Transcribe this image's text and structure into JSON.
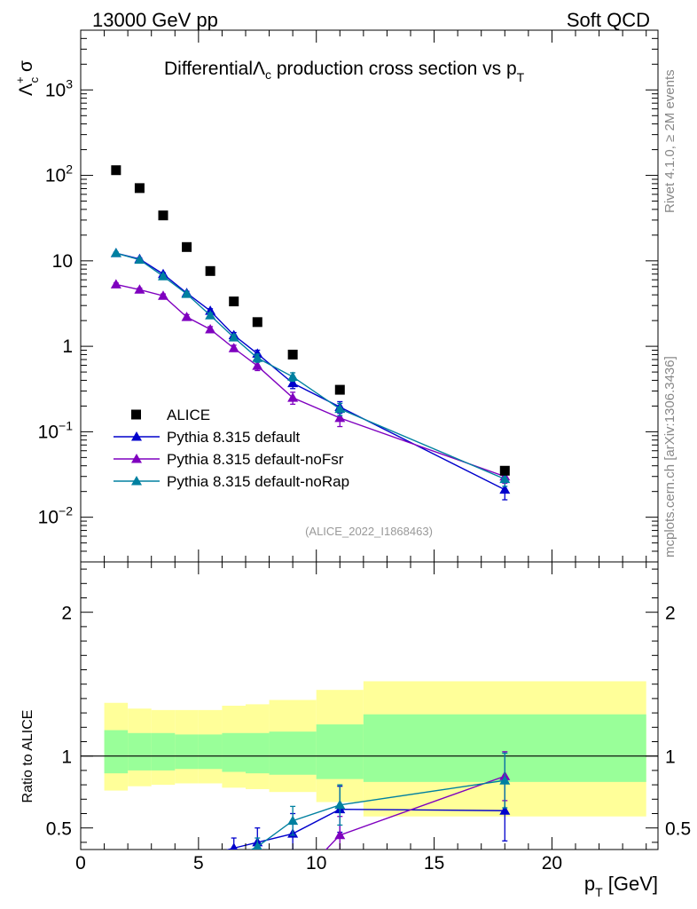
{
  "header": {
    "left": "13000 GeV pp",
    "right": "Soft QCD"
  },
  "side_text": {
    "top": "Rivet 4.1.0, ≥ 2M events",
    "bottom": "mcplots.cern.ch [arXiv:1306.3436]"
  },
  "colors": {
    "data": "#000000",
    "default": "#0000cc",
    "noFsr": "#7f00bf",
    "noRap": "#0080a0",
    "band_inner": "#99ff99",
    "band_outer": "#ffff99"
  },
  "chart_data": [
    {
      "type": "scatter",
      "panel": "main",
      "title_prefix": "Differential",
      "title_sym": "Λ",
      "title_sym_sub": "c",
      "title_mid": " production cross section vs p",
      "title_sub": "T",
      "ylabel_sym": "Λ",
      "ylabel_sup": "+",
      "ylabel_sub": "c",
      "ylabel_rest": " σ",
      "yscale": "log",
      "ylim": [
        0.003,
        5000
      ],
      "xlim": [
        0,
        24.5
      ],
      "ytick_labels": [
        {
          "value": 0.01,
          "base": "10",
          "exp": "−2"
        },
        {
          "value": 0.1,
          "base": "10",
          "exp": "−1"
        },
        {
          "value": 1,
          "text": "1"
        },
        {
          "value": 10,
          "text": "10"
        },
        {
          "value": 100,
          "base": "10",
          "exp": "2"
        },
        {
          "value": 1000,
          "base": "10",
          "exp": "3"
        }
      ],
      "watermark": "(ALICE_2022_I1868463)",
      "legend": [
        "ALICE",
        "Pythia 8.315 default",
        "Pythia 8.315 default-noFsr",
        "Pythia 8.315 default-noRap"
      ],
      "legend_position": "bottom-left",
      "x": [
        1.5,
        2.5,
        3.5,
        4.5,
        5.5,
        6.5,
        7.5,
        9.0,
        11.0,
        18.0
      ],
      "data": {
        "name": "ALICE",
        "values": [
          115,
          71,
          34,
          14.5,
          7.6,
          3.35,
          1.92,
          0.8,
          0.31,
          0.035
        ]
      },
      "series": [
        {
          "name": "Pythia 8.315 default",
          "color_key": "default",
          "values": [
            12.3,
            10.5,
            7.0,
            4.2,
            2.6,
            1.35,
            0.82,
            0.37,
            0.195,
            0.021
          ],
          "errors": [
            0.3,
            0.3,
            0.25,
            0.2,
            0.15,
            0.1,
            0.08,
            0.05,
            0.03,
            0.005
          ]
        },
        {
          "name": "Pythia 8.315 default-noFsr",
          "color_key": "noFsr",
          "values": [
            5.3,
            4.6,
            3.9,
            2.2,
            1.58,
            0.95,
            0.59,
            0.25,
            0.145,
            0.03
          ],
          "errors": [
            0.2,
            0.2,
            0.2,
            0.15,
            0.12,
            0.08,
            0.07,
            0.04,
            0.03,
            0.005
          ]
        },
        {
          "name": "Pythia 8.315 default-noRap",
          "color_key": "noRap",
          "values": [
            12.3,
            10.3,
            6.6,
            4.1,
            2.3,
            1.27,
            0.73,
            0.44,
            0.185,
            0.028
          ],
          "errors": [
            0.3,
            0.3,
            0.25,
            0.2,
            0.15,
            0.1,
            0.08,
            0.05,
            0.03,
            0.005
          ]
        }
      ]
    },
    {
      "type": "line",
      "panel": "ratio",
      "ylabel": "Ratio to ALICE",
      "xlabel": "p",
      "xlabel_sub": "T",
      "xlabel_unit": " [GeV]",
      "ylim": [
        0.35,
        2.35
      ],
      "xlim": [
        0,
        24.5
      ],
      "xtick_labels": [
        "0",
        "5",
        "10",
        "15",
        "20"
      ],
      "xtick_values": [
        0,
        5,
        10,
        15,
        20
      ],
      "ytick_labels": [
        "0.5",
        "1",
        "2"
      ],
      "ytick_values": [
        0.5,
        1,
        2
      ],
      "bins": [
        [
          1,
          2
        ],
        [
          2,
          3
        ],
        [
          3,
          4
        ],
        [
          4,
          5
        ],
        [
          5,
          6
        ],
        [
          6,
          7
        ],
        [
          7,
          8
        ],
        [
          8,
          10
        ],
        [
          10,
          12
        ],
        [
          12,
          24
        ]
      ],
      "band_inner": [
        [
          0.88,
          1.18
        ],
        [
          0.9,
          1.16
        ],
        [
          0.9,
          1.16
        ],
        [
          0.91,
          1.15
        ],
        [
          0.91,
          1.15
        ],
        [
          0.89,
          1.16
        ],
        [
          0.88,
          1.16
        ],
        [
          0.87,
          1.17
        ],
        [
          0.84,
          1.22
        ],
        [
          0.82,
          1.29
        ]
      ],
      "band_outer": [
        [
          0.76,
          1.37
        ],
        [
          0.79,
          1.33
        ],
        [
          0.8,
          1.32
        ],
        [
          0.81,
          1.32
        ],
        [
          0.81,
          1.32
        ],
        [
          0.78,
          1.35
        ],
        [
          0.77,
          1.36
        ],
        [
          0.75,
          1.39
        ],
        [
          0.68,
          1.46
        ],
        [
          0.58,
          1.52
        ]
      ],
      "series": [
        {
          "name": "Pythia 8.315 default",
          "color_key": "default",
          "x": [
            6.5,
            7.5,
            9.0,
            11.0,
            18.0
          ],
          "values": [
            0.36,
            0.4,
            0.46,
            0.63,
            0.62
          ],
          "errors": [
            0.07,
            0.1,
            0.14,
            0.16,
            0.21
          ],
          "enter": [
            5.8,
            0.33
          ]
        },
        {
          "name": "Pythia 8.315 default-noFsr",
          "color_key": "noFsr",
          "x": [
            11.0,
            18.0
          ],
          "values": [
            0.45,
            0.86
          ],
          "errors": [
            0.13,
            0.17
          ],
          "enter": [
            10.3,
            0.33
          ]
        },
        {
          "name": "Pythia 8.315 default-noRap",
          "color_key": "noRap",
          "x": [
            7.5,
            9.0,
            11.0,
            18.0
          ],
          "values": [
            0.37,
            0.55,
            0.66,
            0.83
          ],
          "errors": [
            0.06,
            0.1,
            0.14,
            0.19
          ],
          "enter": [
            7.0,
            0.33
          ]
        }
      ]
    }
  ]
}
